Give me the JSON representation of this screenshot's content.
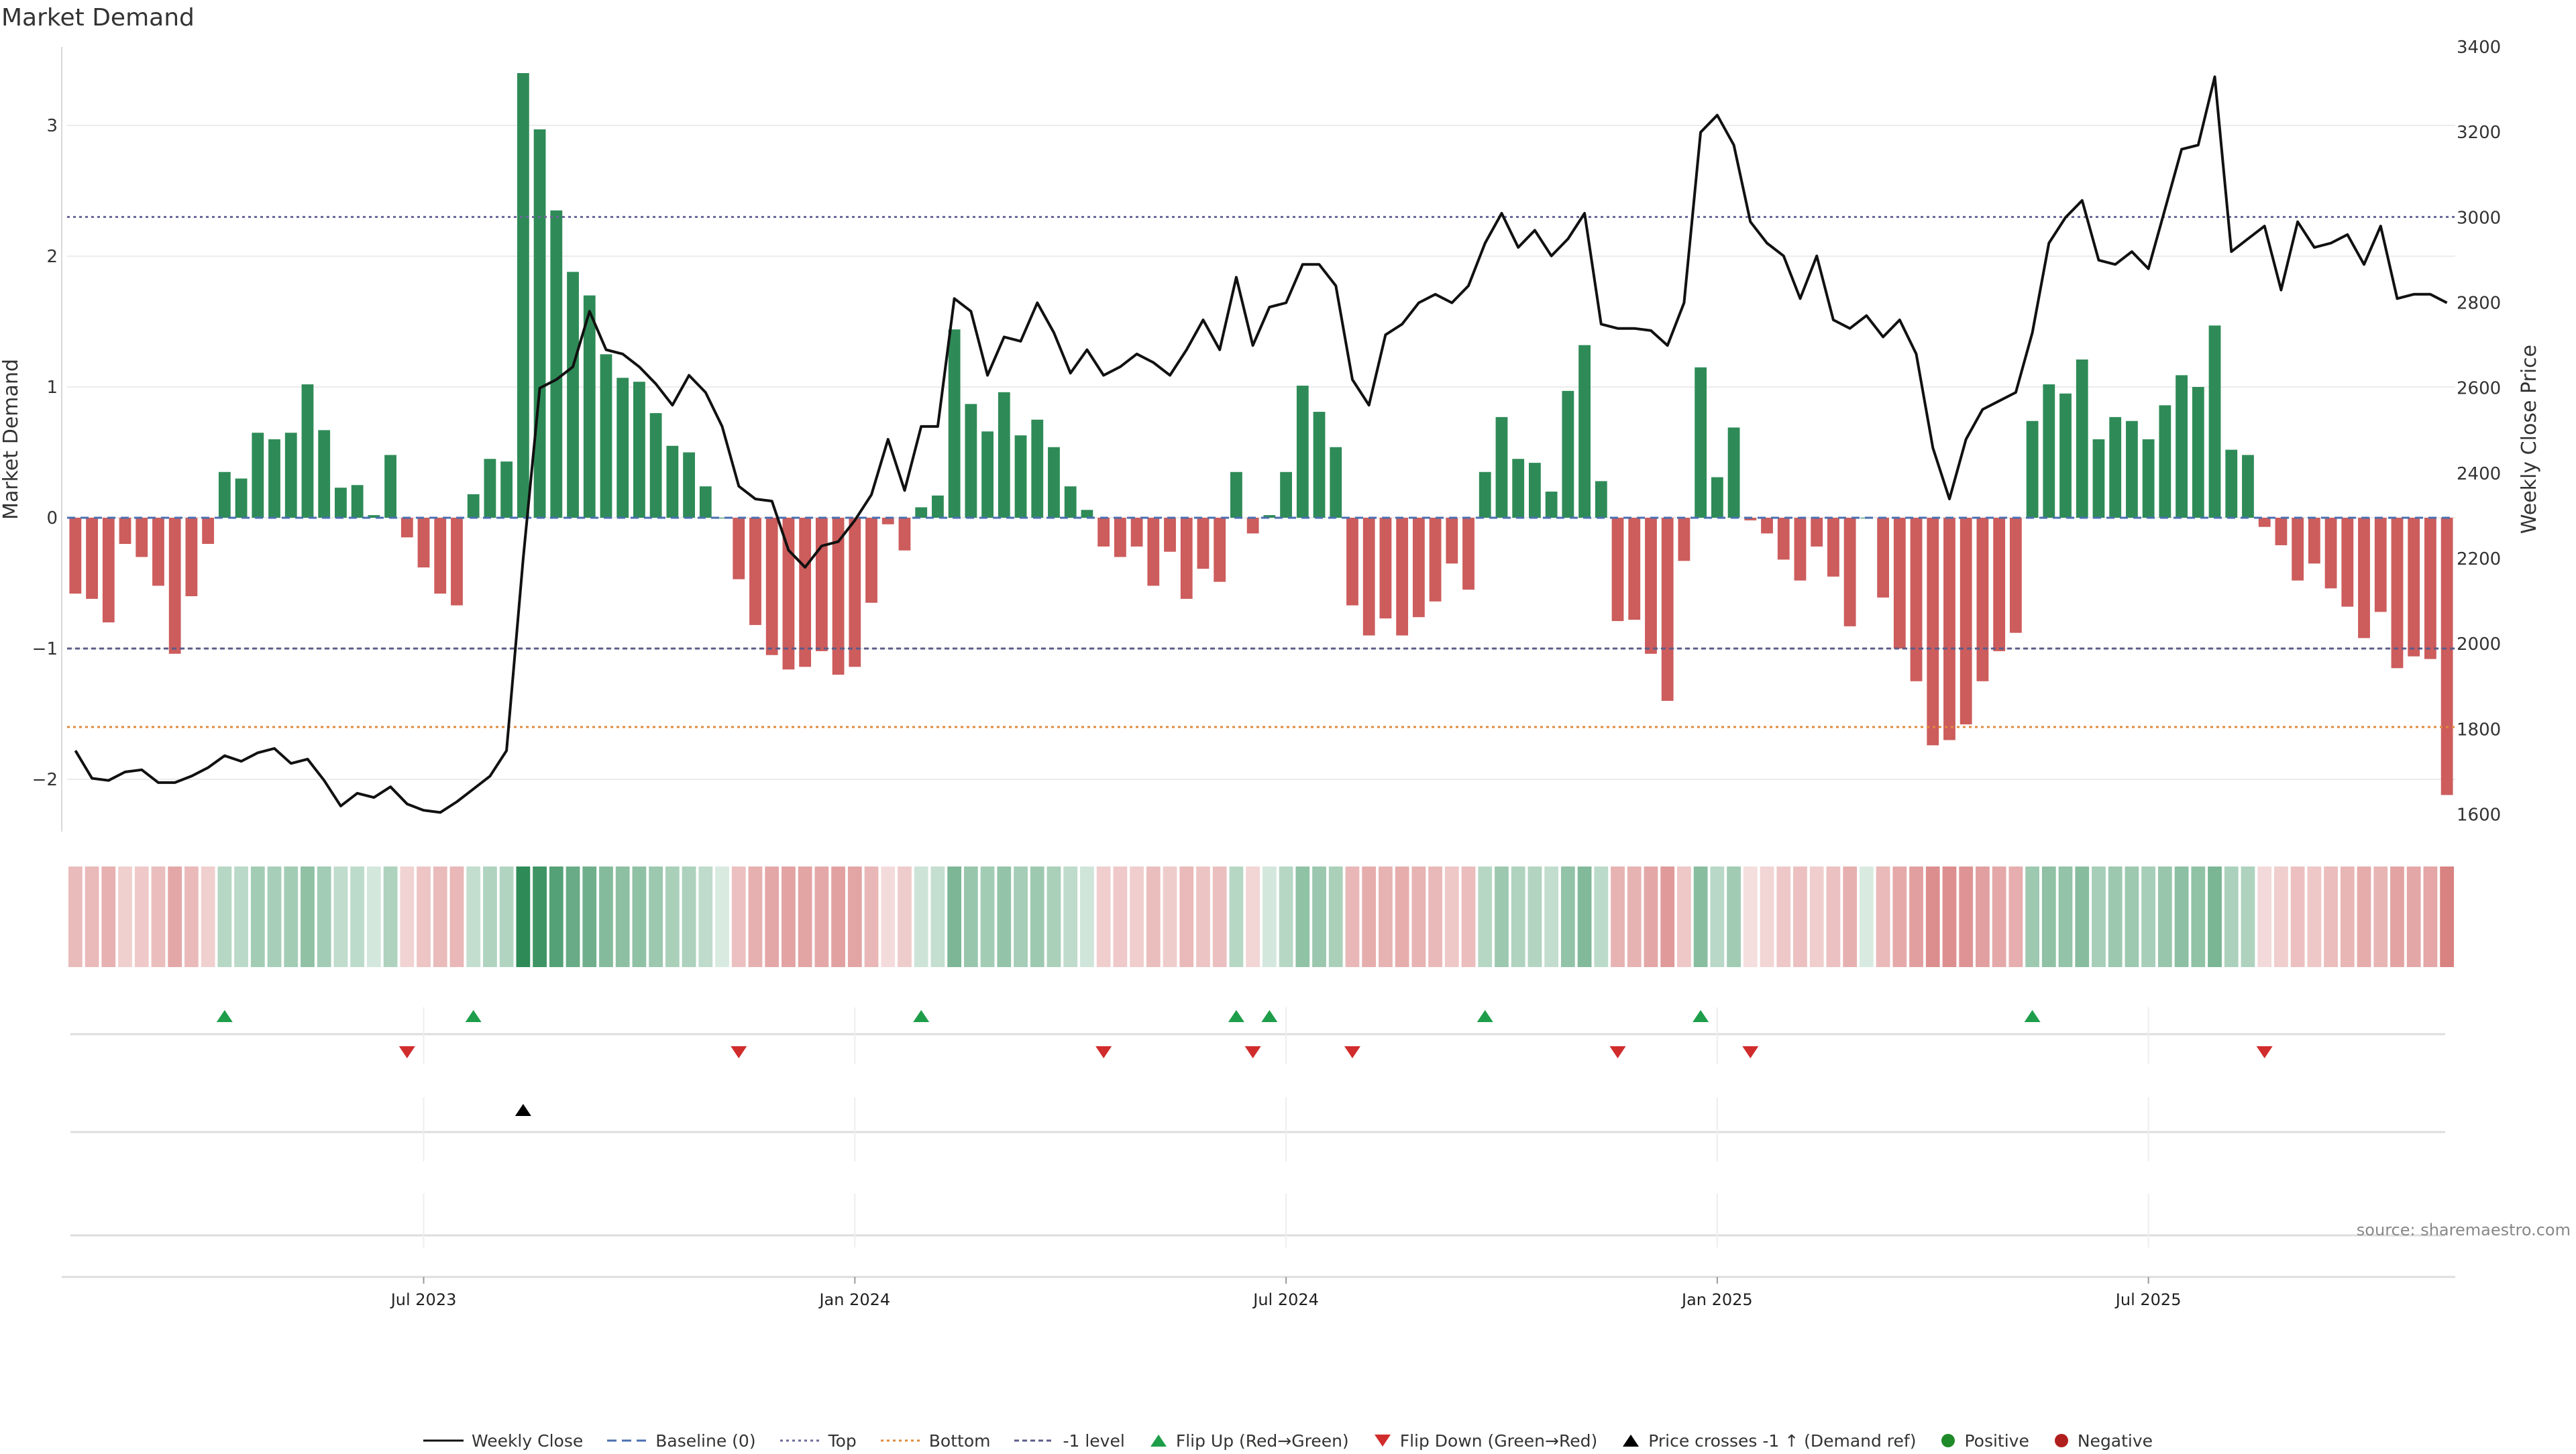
{
  "title": "Market Demand",
  "source": "source: sharemaestro.com",
  "legend": {
    "weekly_close": "Weekly Close",
    "baseline": "Baseline (0)",
    "top": "Top",
    "bottom": "Bottom",
    "minus1": "-1 level",
    "flip_up": "Flip Up (Red→Green)",
    "flip_down": "Flip Down (Green→Red)",
    "price_cross": "Price crosses -1 ↑ (Demand ref)",
    "positive": "Positive",
    "negative": "Negative"
  },
  "colors": {
    "positive": "#2e8b57",
    "negative": "#cd5c5c",
    "price": "#111111",
    "baseline": "#4a6fb0",
    "top": "#6a6a9a",
    "bottom": "#e08a3c",
    "minus1": "#5c5c8a",
    "flip_up": "#1e9e4a",
    "flip_down": "#d12c2c",
    "legend_positive": "#1f8a2a",
    "legend_negative": "#b01e1e"
  },
  "chart_data": {
    "type": "bar",
    "ylabel": "Market Demand",
    "y2label": "Weekly Close Price",
    "ylim": [
      -2.4,
      3.6
    ],
    "y2lim": [
      1560,
      3400
    ],
    "yticks": [
      "−2",
      "−1",
      "0",
      "1",
      "2",
      "3"
    ],
    "ytick_values": [
      -2,
      -1,
      0,
      1,
      2,
      3
    ],
    "y2ticks": [
      "1600",
      "1800",
      "2000",
      "2200",
      "2400",
      "2600",
      "2800",
      "3000",
      "3200",
      "3400"
    ],
    "y2tick_values": [
      1600,
      1800,
      2000,
      2200,
      2400,
      2600,
      2800,
      3000,
      3200,
      3400
    ],
    "xticks": [
      "Jul 2023",
      "Jan 2024",
      "Jul 2024",
      "Jan 2025",
      "Jul 2025"
    ],
    "xtick_weeks": [
      21,
      47,
      73,
      99,
      125
    ],
    "levels": {
      "top": 2.3,
      "bottom": -1.6,
      "minus1": -1.0
    },
    "demand": [
      -0.58,
      -0.62,
      -0.8,
      -0.2,
      -0.3,
      -0.52,
      -1.04,
      -0.6,
      -0.2,
      0.35,
      0.3,
      0.65,
      0.6,
      0.65,
      1.02,
      0.67,
      0.23,
      0.25,
      0.02,
      0.48,
      -0.15,
      -0.38,
      -0.58,
      -0.67,
      0.18,
      0.45,
      0.43,
      3.4,
      2.97,
      2.35,
      1.88,
      1.7,
      1.25,
      1.07,
      1.04,
      0.8,
      0.55,
      0.5,
      0.24,
      0.0,
      -0.47,
      -0.82,
      -1.05,
      -1.16,
      -1.14,
      -1.02,
      -1.2,
      -1.14,
      -0.65,
      -0.05,
      -0.25,
      0.08,
      0.17,
      1.44,
      0.87,
      0.66,
      0.96,
      0.63,
      0.75,
      0.54,
      0.24,
      0.06,
      -0.22,
      -0.3,
      -0.22,
      -0.52,
      -0.26,
      -0.62,
      -0.39,
      -0.49,
      0.35,
      -0.12,
      0.02,
      0.35,
      1.01,
      0.81,
      0.54,
      -0.67,
      -0.9,
      -0.77,
      -0.9,
      -0.76,
      -0.64,
      -0.35,
      -0.55,
      0.35,
      0.77,
      0.45,
      0.42,
      0.2,
      0.97,
      1.32,
      0.28,
      -0.79,
      -0.78,
      -1.04,
      -1.4,
      -0.33,
      1.15,
      0.31,
      0.69,
      -0.02,
      -0.12,
      -0.32,
      -0.48,
      -0.22,
      -0.45,
      -0.83,
      0.0,
      -0.61,
      -1.0,
      -1.25,
      -1.74,
      -1.7,
      -1.58,
      -1.25,
      -1.02,
      -0.88,
      0.74,
      1.02,
      0.95,
      1.21,
      0.6,
      0.77,
      0.74,
      0.6,
      0.86,
      1.09,
      1.0,
      1.47,
      0.52,
      0.48,
      -0.07,
      -0.21,
      -0.48,
      -0.35,
      -0.54,
      -0.68,
      -0.92,
      -0.72,
      -1.15,
      -1.06,
      -1.08,
      -2.12
    ],
    "price": [
      1750,
      1685,
      1680,
      1700,
      1705,
      1675,
      1675,
      1690,
      1710,
      1738,
      1725,
      1745,
      1755,
      1720,
      1730,
      1680,
      1620,
      1650,
      1640,
      1665,
      1625,
      1610,
      1605,
      1630,
      1660,
      1690,
      1750,
      2200,
      2600,
      2620,
      2650,
      2780,
      2690,
      2680,
      2650,
      2610,
      2560,
      2630,
      2590,
      2510,
      2370,
      2340,
      2335,
      2220,
      2180,
      2230,
      2240,
      2290,
      2350,
      2480,
      2360,
      2510,
      2510,
      2810,
      2780,
      2630,
      2720,
      2710,
      2800,
      2730,
      2635,
      2690,
      2630,
      2650,
      2680,
      2660,
      2630,
      2690,
      2760,
      2690,
      2860,
      2700,
      2790,
      2800,
      2890,
      2890,
      2840,
      2620,
      2560,
      2725,
      2750,
      2800,
      2820,
      2800,
      2840,
      2940,
      3010,
      2930,
      2970,
      2910,
      2950,
      3010,
      2750,
      2740,
      2740,
      2735,
      2700,
      2800,
      3200,
      3240,
      3170,
      2990,
      2940,
      2910,
      2810,
      2910,
      2760,
      2740,
      2770,
      2720,
      2760,
      2680,
      2460,
      2340,
      2480,
      2550,
      2570,
      2590,
      2730,
      2940,
      3000,
      3040,
      2900,
      2890,
      2920,
      2880,
      3020,
      3160,
      3170,
      3330,
      2920,
      2950,
      2980,
      2830,
      2990,
      2930,
      2940,
      2960,
      2890,
      2980,
      2810,
      2820,
      2820,
      2800
    ],
    "flip_up_weeks": [
      9,
      24,
      51,
      70,
      72,
      85,
      98,
      118
    ],
    "flip_down_weeks": [
      20,
      40,
      62,
      71,
      77,
      93,
      101,
      132
    ],
    "price_cross_weeks": [
      27
    ]
  }
}
